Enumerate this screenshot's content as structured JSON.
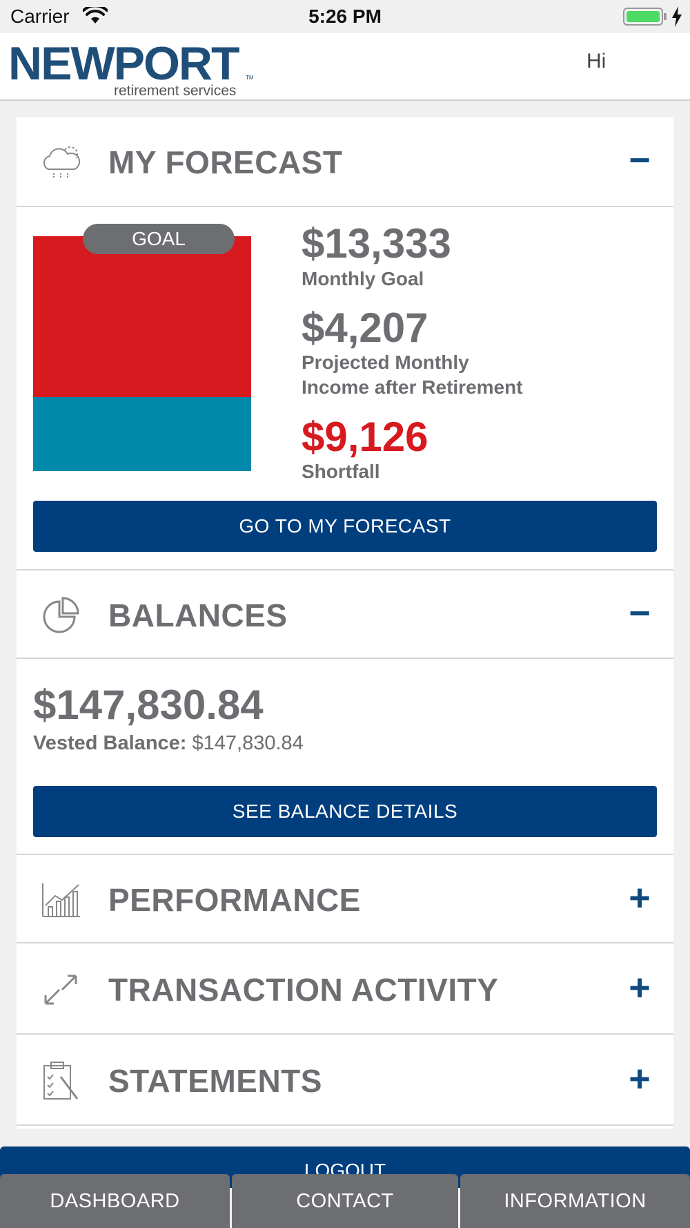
{
  "status_bar": {
    "carrier": "Carrier",
    "time": "5:26 PM"
  },
  "header": {
    "logo_word": "NEWPORT",
    "logo_tm": "TM",
    "logo_subtitle": "retirement services",
    "greeting": "Hi"
  },
  "forecast": {
    "title": "MY FORECAST",
    "toggle": "−",
    "icon": "cloud-rain-icon",
    "goal_pill": "GOAL",
    "projected_fraction_of_goal": 0.3155,
    "monthly_goal_amount": "$13,333",
    "monthly_goal_label": "Monthly Goal",
    "projected_amount": "$4,207",
    "projected_label_line1": "Projected Monthly",
    "projected_label_line2": "Income after Retirement",
    "shortfall_amount": "$9,126",
    "shortfall_label": "Shortfall",
    "button_label": "GO TO MY FORECAST",
    "colors": {
      "goal": "#d71920",
      "projected": "#0089ab"
    }
  },
  "balances": {
    "title": "BALANCES",
    "toggle": "−",
    "icon": "pie-chart-icon",
    "total": "$147,830.84",
    "vested_label": "Vested Balance:",
    "vested_value": "$147,830.84",
    "button_label": "SEE BALANCE DETAILS"
  },
  "performance": {
    "title": "PERFORMANCE",
    "toggle": "+",
    "icon": "bar-chart-icon"
  },
  "transactions": {
    "title": "TRANSACTION ACTIVITY",
    "toggle": "+",
    "icon": "transfer-arrows-icon"
  },
  "statements": {
    "title": "STATEMENTS",
    "toggle": "+",
    "icon": "clipboard-icon"
  },
  "logout_label": "LOGOUT",
  "tabs": [
    {
      "label": "DASHBOARD"
    },
    {
      "label": "CONTACT"
    },
    {
      "label": "INFORMATION"
    }
  ],
  "colors": {
    "brand_blue": "#003e7e",
    "text_gray": "#6d6e71",
    "alert_red": "#d71920"
  }
}
